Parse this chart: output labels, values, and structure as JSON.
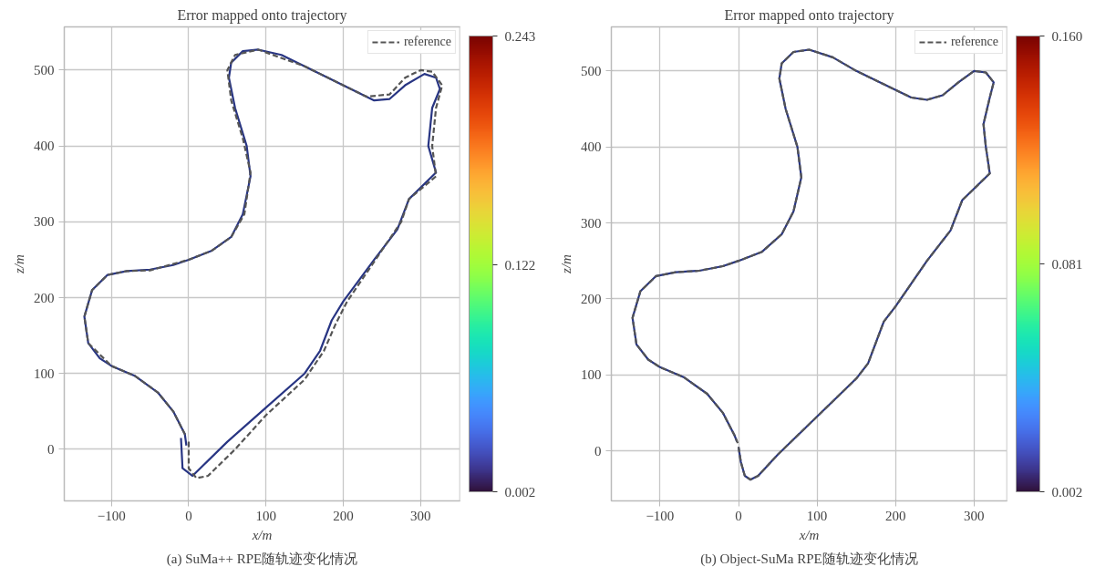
{
  "chart_data": [
    {
      "type": "line",
      "title": "Error mapped onto trajectory",
      "xlabel": "x/m",
      "ylabel": "z/m",
      "xlim": [
        -161,
        351
      ],
      "ylim": [
        -68,
        557
      ],
      "xticks": [
        {
          "value": -100,
          "label": "−100"
        },
        0,
        100,
        200,
        300
      ],
      "yticks": [
        0,
        100,
        200,
        300,
        400,
        500
      ],
      "grid": true,
      "legend": "top right",
      "clim": [
        0.002,
        0.243
      ],
      "cticks": [
        0.002,
        0.122,
        0.243
      ],
      "annotations": [
        "(a) SuMa++ RPE随轨迹变化情况"
      ],
      "series": [
        {
          "color": "#283583",
          "line_style": "solid",
          "x": [
            -10,
            -8,
            5,
            20,
            50,
            100,
            150,
            170,
            185,
            200,
            240,
            270,
            285,
            320,
            310,
            315,
            325,
            320,
            305,
            280,
            260,
            240,
            210,
            150,
            120,
            90,
            70,
            55,
            52,
            60,
            75,
            80,
            70,
            55,
            30,
            0,
            -20,
            -50,
            -80,
            -105,
            -125,
            -135,
            -130,
            -115,
            -100,
            -70,
            -40,
            -20,
            -5,
            -3
          ],
          "values": [
            15,
            -25,
            -35,
            -20,
            10,
            55,
            100,
            130,
            170,
            195,
            250,
            290,
            330,
            365,
            400,
            450,
            475,
            490,
            495,
            480,
            462,
            460,
            475,
            505,
            520,
            527,
            525,
            510,
            490,
            450,
            400,
            360,
            310,
            280,
            262,
            250,
            243,
            237,
            235,
            230,
            210,
            175,
            140,
            120,
            110,
            97,
            75,
            50,
            20,
            5
          ]
        },
        {
          "name": "reference",
          "color": "#555555",
          "line_style": "dashed",
          "x": [
            0,
            0,
            10,
            25,
            60,
            100,
            150,
            175,
            190,
            205,
            245,
            275,
            285,
            320,
            315,
            320,
            328,
            315,
            300,
            280,
            260,
            230,
            150,
            90,
            60,
            50,
            55,
            70,
            80,
            72,
            55,
            30,
            0,
            -50,
            -80,
            -105,
            -125,
            -135,
            -130,
            -100,
            -70,
            -40,
            -20,
            -5,
            -2
          ],
          "values": [
            10,
            -25,
            -38,
            -35,
            0,
            45,
            92,
            130,
            165,
            195,
            255,
            300,
            330,
            360,
            400,
            450,
            480,
            498,
            500,
            490,
            468,
            465,
            505,
            527,
            520,
            500,
            460,
            410,
            365,
            310,
            280,
            262,
            250,
            236,
            235,
            230,
            210,
            175,
            140,
            110,
            97,
            75,
            50,
            20,
            18
          ]
        }
      ]
    },
    {
      "type": "line",
      "title": "Error mapped onto trajectory",
      "xlabel": "x/m",
      "ylabel": "z/m",
      "xlim": [
        -162,
        342
      ],
      "ylim": [
        -66,
        558
      ],
      "xticks": [
        {
          "value": -100,
          "label": "−100"
        },
        0,
        100,
        200,
        300
      ],
      "yticks": [
        0,
        100,
        200,
        300,
        400,
        500
      ],
      "grid": true,
      "legend": "top right",
      "clim": [
        0.002,
        0.16
      ],
      "cticks": [
        0.002,
        0.081,
        {
          "value": 0.16,
          "label": "0.160"
        }
      ],
      "annotations": [
        "(b) Object-SuMa RPE随轨迹变化情况"
      ],
      "series": [
        {
          "color": "#283583",
          "line_style": "solid",
          "x": [
            0,
            3,
            8,
            15,
            25,
            50,
            100,
            150,
            165,
            185,
            200,
            240,
            270,
            285,
            300,
            320,
            315,
            312,
            320,
            325,
            315,
            300,
            280,
            260,
            240,
            220,
            190,
            150,
            120,
            90,
            70,
            55,
            52,
            60,
            75,
            80,
            70,
            55,
            30,
            0,
            -20,
            -50,
            -80,
            -105,
            -125,
            -135,
            -130,
            -115,
            -100,
            -70,
            -40,
            -20,
            -5,
            -2
          ],
          "values": [
            5,
            -15,
            -33,
            -38,
            -33,
            -5,
            45,
            95,
            115,
            170,
            190,
            250,
            290,
            330,
            345,
            365,
            400,
            430,
            465,
            485,
            498,
            500,
            485,
            468,
            462,
            465,
            480,
            500,
            518,
            528,
            525,
            510,
            490,
            450,
            400,
            360,
            315,
            285,
            262,
            250,
            243,
            237,
            235,
            230,
            210,
            175,
            140,
            120,
            110,
            97,
            75,
            50,
            20,
            12
          ]
        },
        {
          "name": "reference",
          "color": "#555555",
          "line_style": "dashed",
          "x": [
            0,
            3,
            8,
            15,
            25,
            50,
            100,
            150,
            165,
            185,
            200,
            240,
            270,
            285,
            300,
            320,
            315,
            312,
            320,
            325,
            315,
            300,
            280,
            260,
            240,
            220,
            190,
            150,
            120,
            90,
            70,
            55,
            52,
            60,
            75,
            80,
            70,
            55,
            30,
            0,
            -20,
            -50,
            -80,
            -105,
            -125,
            -135,
            -130,
            -115,
            -100,
            -70,
            -40,
            -20,
            -5,
            -1
          ],
          "values": [
            5,
            -15,
            -33,
            -38,
            -33,
            -5,
            45,
            95,
            115,
            170,
            190,
            250,
            290,
            330,
            345,
            365,
            400,
            430,
            465,
            485,
            498,
            500,
            485,
            468,
            462,
            465,
            480,
            500,
            518,
            528,
            525,
            510,
            490,
            450,
            400,
            360,
            315,
            285,
            262,
            250,
            243,
            237,
            235,
            230,
            210,
            175,
            140,
            120,
            110,
            97,
            75,
            50,
            20,
            10
          ]
        }
      ]
    }
  ]
}
